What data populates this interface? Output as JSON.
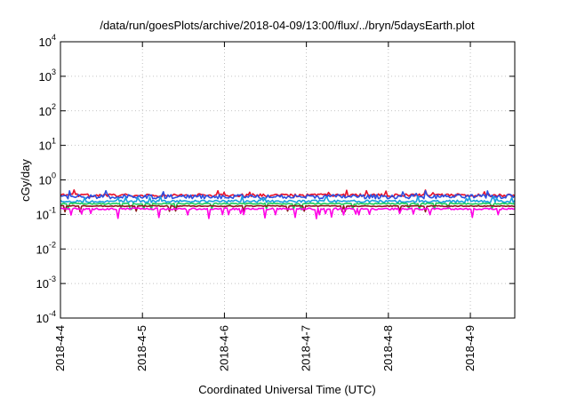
{
  "chart_data": {
    "type": "line",
    "title": "/data/run/goesPlots/archive/2018-04-09/13:00/flux/../bryn/5daysEarth.plot",
    "xlabel": "Coordinated Universal Time (UTC)",
    "ylabel": "cGy/day",
    "y_scale": "log",
    "ylim": [
      0.0001,
      10000
    ],
    "y_ticks": [
      {
        "base": "10",
        "exp": "-4",
        "value": 0.0001
      },
      {
        "base": "10",
        "exp": "-3",
        "value": 0.001
      },
      {
        "base": "10",
        "exp": "-2",
        "value": 0.01
      },
      {
        "base": "10",
        "exp": "-1",
        "value": 0.1
      },
      {
        "base": "10",
        "exp": "0",
        "value": 1
      },
      {
        "base": "10",
        "exp": "1",
        "value": 10
      },
      {
        "base": "10",
        "exp": "2",
        "value": 100
      },
      {
        "base": "10",
        "exp": "3",
        "value": 1000
      },
      {
        "base": "10",
        "exp": "4",
        "value": 10000
      }
    ],
    "x_ticks": [
      "2018-4-4",
      "2018-4-5",
      "2018-4-6",
      "2018-4-7",
      "2018-4-8",
      "2018-4-9"
    ],
    "xlim": [
      "2018-04-04 00:00",
      "2018-04-09 13:00"
    ],
    "grid": true,
    "series": [
      {
        "color": "#e8102a",
        "base": 0.36,
        "jitter": 0.1
      },
      {
        "color": "#2a4fe0",
        "base": 0.33,
        "jitter": 0.14
      },
      {
        "color": "#1a9ee0",
        "base": 0.24,
        "jitter": 0.08
      },
      {
        "color": "#1ccf5a",
        "base": 0.205,
        "jitter": 0.04
      },
      {
        "color": "#8b1a1a",
        "base": 0.175,
        "jitter": 0.03
      },
      {
        "color": "#ff00e6",
        "base": 0.145,
        "jitter": 0.06
      }
    ]
  }
}
